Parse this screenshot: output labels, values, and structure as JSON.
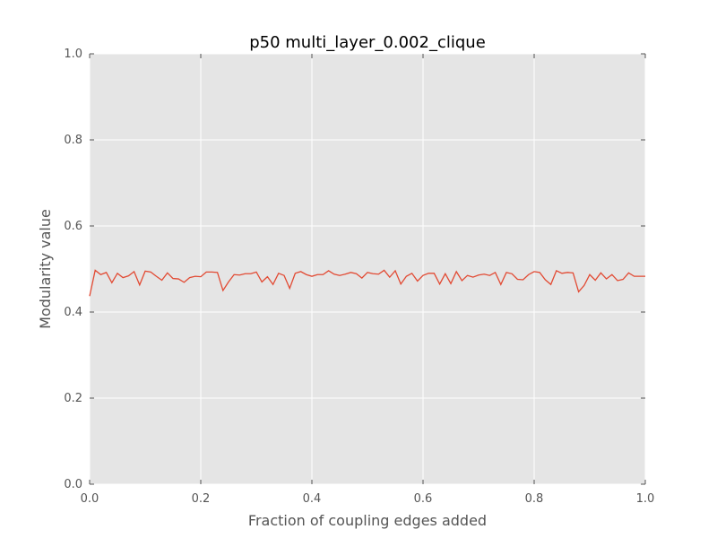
{
  "chart_data": {
    "type": "line",
    "title": "p50 multi_layer_0.002_clique",
    "xlabel": "Fraction of coupling edges added",
    "ylabel": "Modularity value",
    "xlim": [
      0.0,
      1.0
    ],
    "ylim": [
      0.0,
      1.0
    ],
    "xticks": [
      "0.0",
      "0.2",
      "0.4",
      "0.6",
      "0.8",
      "1.0"
    ],
    "yticks": [
      "0.0",
      "0.2",
      "0.4",
      "0.6",
      "0.8",
      "1.0"
    ],
    "grid": true,
    "background": "#e5e5e5",
    "line_color": "#e24a33",
    "series": [
      {
        "x": [
          0.0,
          0.01,
          0.02,
          0.03,
          0.04,
          0.05,
          0.06,
          0.07,
          0.08,
          0.09,
          0.1,
          0.11,
          0.12,
          0.13,
          0.14,
          0.15,
          0.16,
          0.17,
          0.18,
          0.19,
          0.2,
          0.21,
          0.22,
          0.23,
          0.24,
          0.25,
          0.26,
          0.27,
          0.28,
          0.29,
          0.3,
          0.31,
          0.32,
          0.33,
          0.34,
          0.35,
          0.36,
          0.37,
          0.38,
          0.39,
          0.4,
          0.41,
          0.42,
          0.43,
          0.44,
          0.45,
          0.46,
          0.47,
          0.48,
          0.49,
          0.5,
          0.51,
          0.52,
          0.53,
          0.54,
          0.55,
          0.56,
          0.57,
          0.58,
          0.59,
          0.6,
          0.61,
          0.62,
          0.63,
          0.64,
          0.65,
          0.66,
          0.67,
          0.68,
          0.69,
          0.7,
          0.71,
          0.72,
          0.73,
          0.74,
          0.75,
          0.76,
          0.77,
          0.78,
          0.79,
          0.8,
          0.81,
          0.82,
          0.83,
          0.84,
          0.85,
          0.86,
          0.87,
          0.88,
          0.89,
          0.9,
          0.91,
          0.92,
          0.93,
          0.94,
          0.95,
          0.96,
          0.97,
          0.98,
          0.99,
          1.0
        ],
        "values": [
          0.437,
          0.497,
          0.487,
          0.492,
          0.468,
          0.49,
          0.48,
          0.484,
          0.494,
          0.463,
          0.495,
          0.493,
          0.483,
          0.474,
          0.491,
          0.478,
          0.477,
          0.469,
          0.48,
          0.483,
          0.482,
          0.493,
          0.493,
          0.492,
          0.45,
          0.47,
          0.487,
          0.486,
          0.489,
          0.489,
          0.493,
          0.47,
          0.482,
          0.464,
          0.49,
          0.485,
          0.455,
          0.49,
          0.494,
          0.487,
          0.483,
          0.487,
          0.487,
          0.496,
          0.488,
          0.485,
          0.488,
          0.492,
          0.489,
          0.479,
          0.492,
          0.489,
          0.488,
          0.497,
          0.481,
          0.496,
          0.465,
          0.483,
          0.49,
          0.472,
          0.485,
          0.49,
          0.49,
          0.465,
          0.489,
          0.466,
          0.494,
          0.473,
          0.485,
          0.481,
          0.486,
          0.488,
          0.485,
          0.492,
          0.464,
          0.492,
          0.489,
          0.476,
          0.475,
          0.487,
          0.494,
          0.492,
          0.475,
          0.464,
          0.496,
          0.49,
          0.492,
          0.491,
          0.447,
          0.462,
          0.487,
          0.474,
          0.491,
          0.477,
          0.487,
          0.473,
          0.476,
          0.491,
          0.483,
          0.483,
          0.483
        ]
      }
    ]
  }
}
